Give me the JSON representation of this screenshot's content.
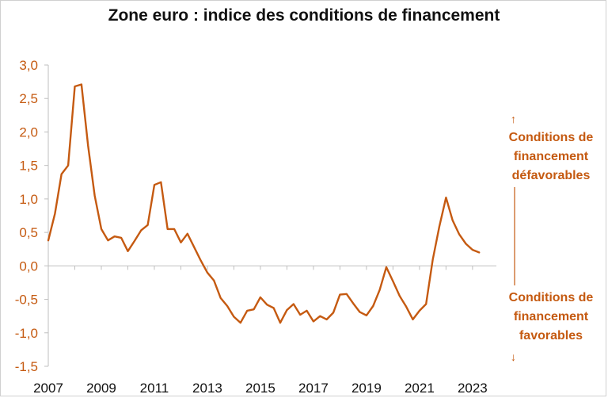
{
  "chart_data": {
    "type": "line",
    "title": "Zone euro : indice des conditions de financement",
    "xlabel": "",
    "ylabel": "",
    "xlim": [
      2007,
      2023.9
    ],
    "ylim": [
      -1.5,
      3.0
    ],
    "yticks": [
      "3,0",
      "2,5",
      "2,0",
      "1,5",
      "1,0",
      "0,5",
      "0,0",
      "-0,5",
      "-1,0",
      "-1,5"
    ],
    "ytick_values": [
      3.0,
      2.5,
      2.0,
      1.5,
      1.0,
      0.5,
      0.0,
      -0.5,
      -1.0,
      -1.5
    ],
    "xticks": [
      "2007",
      "2009",
      "2011",
      "2013",
      "2015",
      "2017",
      "2019",
      "2021",
      "2023"
    ],
    "xtick_values": [
      2007,
      2009,
      2011,
      2013,
      2015,
      2017,
      2019,
      2021,
      2023
    ],
    "grid": false,
    "series": [
      {
        "x": [
          2007.0,
          2007.25,
          2007.5,
          2007.75,
          2008.0,
          2008.25,
          2008.5,
          2008.75,
          2009.0,
          2009.25,
          2009.5,
          2009.75,
          2010.0,
          2010.25,
          2010.5,
          2010.75,
          2011.0,
          2011.25,
          2011.5,
          2011.75,
          2012.0,
          2012.25,
          2012.5,
          2012.75,
          2013.0,
          2013.25,
          2013.5,
          2013.75,
          2014.0,
          2014.25,
          2014.5,
          2014.75,
          2015.0,
          2015.25,
          2015.5,
          2015.75,
          2016.0,
          2016.25,
          2016.5,
          2016.75,
          2017.0,
          2017.25,
          2017.5,
          2017.75,
          2018.0,
          2018.25,
          2018.5,
          2018.75,
          2019.0,
          2019.25,
          2019.5,
          2019.75,
          2020.0,
          2020.25,
          2020.5,
          2020.75,
          2021.0,
          2021.25,
          2021.5,
          2021.75,
          2022.0,
          2022.25,
          2022.5,
          2022.75,
          2023.0,
          2023.25
        ],
        "values": [
          0.38,
          0.78,
          1.37,
          1.5,
          2.68,
          2.71,
          1.8,
          1.05,
          0.55,
          0.38,
          0.44,
          0.42,
          0.22,
          0.37,
          0.53,
          0.61,
          1.21,
          1.25,
          0.55,
          0.55,
          0.35,
          0.48,
          0.28,
          0.08,
          -0.1,
          -0.22,
          -0.48,
          -0.6,
          -0.76,
          -0.85,
          -0.67,
          -0.65,
          -0.47,
          -0.58,
          -0.63,
          -0.85,
          -0.66,
          -0.57,
          -0.73,
          -0.67,
          -0.83,
          -0.75,
          -0.8,
          -0.7,
          -0.43,
          -0.42,
          -0.56,
          -0.69,
          -0.74,
          -0.6,
          -0.36,
          -0.02,
          -0.23,
          -0.45,
          -0.61,
          -0.8,
          -0.67,
          -0.57,
          0.09,
          0.59,
          1.02,
          0.68,
          0.47,
          0.33,
          0.24,
          0.2
        ]
      }
    ],
    "color": "#c55a11",
    "annotations": {
      "top": [
        "Conditions de",
        "financement",
        "défavorables"
      ],
      "bottom": [
        "Conditions de",
        "financement",
        "favorables"
      ],
      "up_arrow": "↑",
      "down_arrow": "↓"
    }
  }
}
